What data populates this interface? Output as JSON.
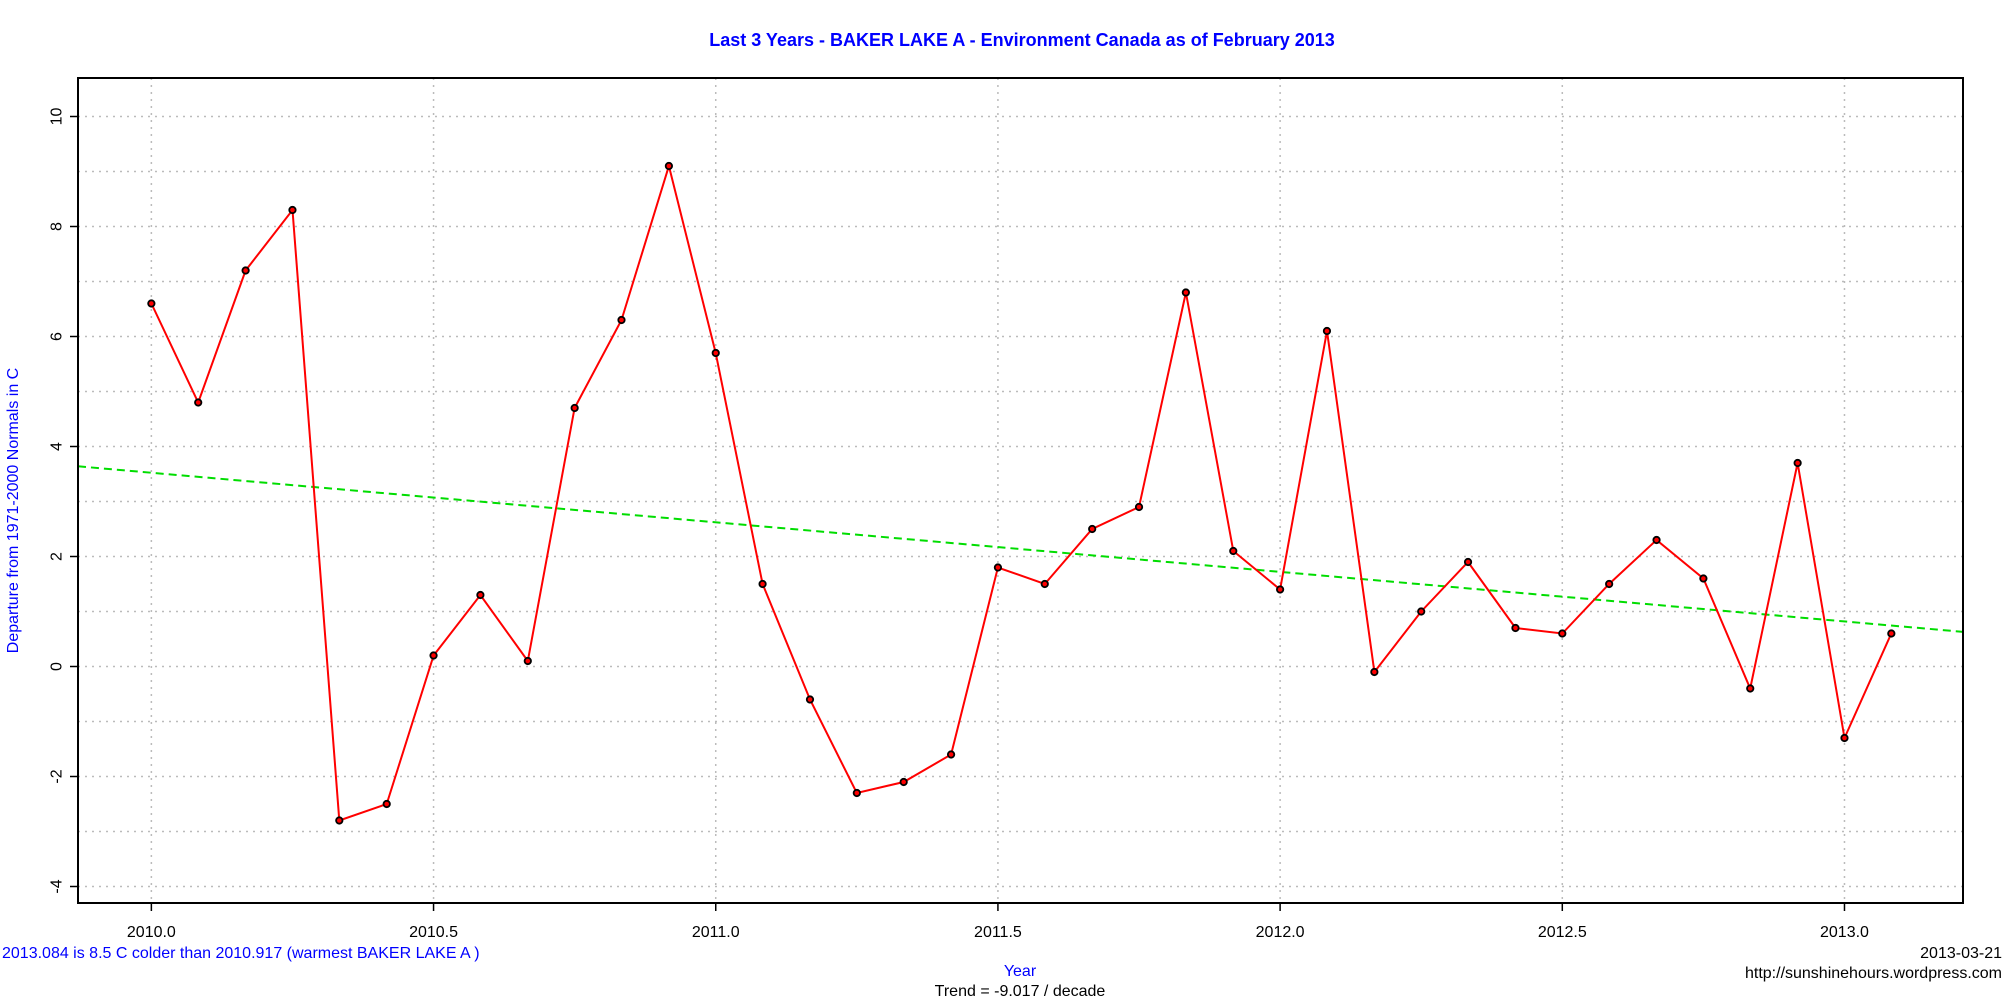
{
  "colors": {
    "title": "#0000ff",
    "series": "#ff0000",
    "trend": "#00dd00",
    "points": "#000000",
    "grid": "#bbbbbb",
    "annotation": "#0000ff"
  },
  "chart_data": {
    "type": "line",
    "title": "Last 3 Years - BAKER LAKE A - Environment Canada as of  February 2013",
    "xlabel": "Year",
    "ylabel": "Departure from 1971-2000 Normals in C",
    "xlim": [
      2009.87,
      2013.21
    ],
    "ylim": [
      -4.3,
      10.7
    ],
    "x_ticks": [
      2010.0,
      2010.5,
      2011.0,
      2011.5,
      2012.0,
      2012.5,
      2013.0
    ],
    "x_tick_labels": [
      "2010.0",
      "2010.5",
      "2011.0",
      "2011.5",
      "2012.0",
      "2012.5",
      "2013.0"
    ],
    "y_ticks": [
      -4,
      -2,
      0,
      2,
      4,
      6,
      8,
      10
    ],
    "y_tick_labels": [
      "-4",
      "-2",
      "0",
      "2",
      "4",
      "6",
      "8",
      "10"
    ],
    "y_minor_grid": [
      -3,
      -1,
      1,
      3,
      5,
      7,
      9
    ],
    "grid": true,
    "series": [
      {
        "x": [
          2010.0,
          2010.083,
          2010.167,
          2010.25,
          2010.333,
          2010.417,
          2010.5,
          2010.583,
          2010.667,
          2010.75,
          2010.833,
          2010.917,
          2011.0,
          2011.083,
          2011.167,
          2011.25,
          2011.333,
          2011.417,
          2011.5,
          2011.583,
          2011.667,
          2011.75,
          2011.833,
          2011.917,
          2012.0,
          2012.083,
          2012.167,
          2012.25,
          2012.333,
          2012.417,
          2012.5,
          2012.583,
          2012.667,
          2012.75,
          2012.833,
          2012.917,
          2013.0,
          2013.083
        ],
        "values": [
          6.6,
          4.8,
          7.2,
          8.3,
          -2.8,
          -2.5,
          0.2,
          1.3,
          0.1,
          4.7,
          6.3,
          9.1,
          5.7,
          1.5,
          -0.6,
          -2.3,
          -2.1,
          -1.6,
          1.8,
          1.5,
          2.5,
          2.9,
          6.8,
          2.1,
          1.4,
          6.1,
          -0.1,
          1.0,
          1.9,
          0.7,
          0.6,
          1.5,
          2.3,
          1.6,
          -0.4,
          3.7,
          -1.3,
          0.6
        ]
      }
    ],
    "trend": {
      "x": [
        2009.87,
        2013.21
      ],
      "values": [
        3.64,
        0.63
      ]
    },
    "annotations": {
      "bottom_left": "2013.084 is 8.5 C  colder than 2010.917 (warmest BAKER LAKE A )",
      "trend_label": "Trend = -9.017 / decade",
      "date": "2013-03-21",
      "source": "http://sunshinehours.wordpress.com"
    }
  }
}
